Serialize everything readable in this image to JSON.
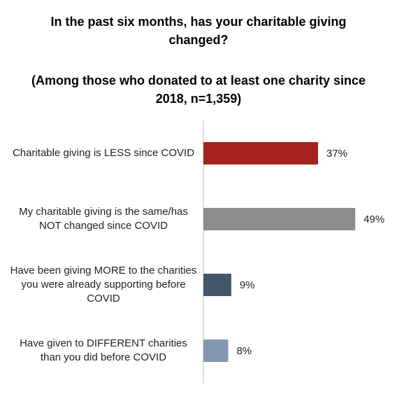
{
  "chart_data": {
    "type": "hbar",
    "title": "In the past six months, has your charitable giving changed?",
    "subtitle": "(Among those who donated to at least one charity since 2018, n=1,359)",
    "categories": [
      "Charitable giving is LESS since COVID",
      "My charitable giving is the same/has NOT changed since COVID",
      "Have been giving MORE to the charities you were already supporting before COVID",
      "Have given to DIFFERENT charities than you did before COVID"
    ],
    "values": [
      37,
      49,
      9,
      8
    ],
    "value_labels": [
      "37%",
      "49%",
      "9%",
      "8%"
    ],
    "colors": [
      "#a5231f",
      "#8c8c8c",
      "#44546a",
      "#8497b0"
    ],
    "xlim": [
      0,
      60
    ]
  }
}
